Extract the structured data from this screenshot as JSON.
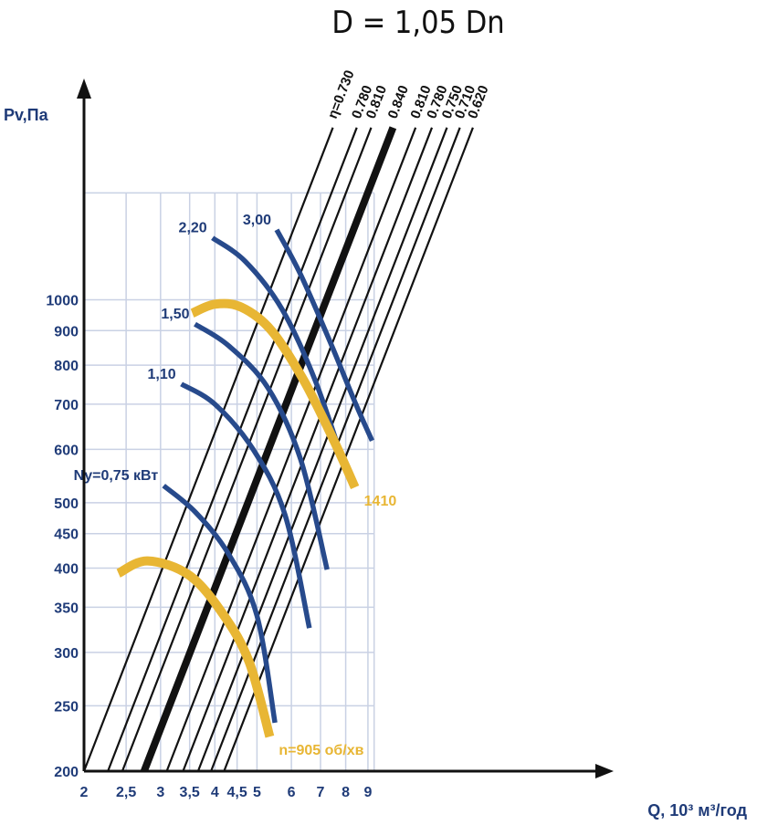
{
  "title": "D = 1,05 Dn",
  "chart_data": {
    "type": "line",
    "xlabel": "Q, 10³ м³/год",
    "ylabel": "Pv,Па",
    "xscale": "log",
    "yscale": "log",
    "xlim": [
      2,
      9.5
    ],
    "ylim": [
      200,
      1500
    ],
    "grid": true,
    "x_ticks": [
      {
        "v": 2,
        "label": "2"
      },
      {
        "v": 2.5,
        "label": "2,5"
      },
      {
        "v": 3,
        "label": "3"
      },
      {
        "v": 3.5,
        "label": "3,5"
      },
      {
        "v": 4,
        "label": "4"
      },
      {
        "v": 4.5,
        "label": "4,5"
      },
      {
        "v": 5,
        "label": "5"
      },
      {
        "v": 6,
        "label": "6"
      },
      {
        "v": 7,
        "label": "7"
      },
      {
        "v": 8,
        "label": "8"
      },
      {
        "v": 9,
        "label": "9"
      }
    ],
    "y_ticks": [
      {
        "v": 200,
        "label": "200"
      },
      {
        "v": 250,
        "label": "250"
      },
      {
        "v": 300,
        "label": "300"
      },
      {
        "v": 350,
        "label": "350"
      },
      {
        "v": 400,
        "label": "400"
      },
      {
        "v": 450,
        "label": "450"
      },
      {
        "v": 500,
        "label": "500"
      },
      {
        "v": 600,
        "label": "600"
      },
      {
        "v": 700,
        "label": "700"
      },
      {
        "v": 800,
        "label": "800"
      },
      {
        "v": 900,
        "label": "900"
      },
      {
        "v": 1000,
        "label": "1000"
      }
    ],
    "efficiency_lines": [
      {
        "label": "η=0.730",
        "x_at_200": 2.0
      },
      {
        "label": "0.780",
        "x_at_200": 2.27
      },
      {
        "label": "0.810",
        "x_at_200": 2.45
      },
      {
        "label": "0.840",
        "x_at_200": 2.75,
        "bold": true
      },
      {
        "label": "0.810",
        "x_at_200": 3.1
      },
      {
        "label": "0.780",
        "x_at_200": 3.38
      },
      {
        "label": "0.750",
        "x_at_200": 3.66
      },
      {
        "label": "0.710",
        "x_at_200": 3.92
      },
      {
        "label": "0.620",
        "x_at_200": 4.2
      }
    ],
    "power_curves": [
      {
        "label": "Ny=0,75 кВт",
        "points": [
          [
            3.05,
            530
          ],
          [
            3.6,
            485
          ],
          [
            4.3,
            420
          ],
          [
            5.0,
            340
          ],
          [
            5.5,
            236
          ]
        ]
      },
      {
        "label": "1,10",
        "points": [
          [
            3.35,
            750
          ],
          [
            4.0,
            700
          ],
          [
            4.9,
            600
          ],
          [
            5.8,
            480
          ],
          [
            6.6,
            326
          ]
        ]
      },
      {
        "label": "1,50",
        "points": [
          [
            3.6,
            920
          ],
          [
            4.3,
            855
          ],
          [
            5.3,
            740
          ],
          [
            6.3,
            580
          ],
          [
            7.25,
            398
          ]
        ]
      },
      {
        "label": "2,20",
        "points": [
          [
            3.95,
            1235
          ],
          [
            4.7,
            1140
          ],
          [
            5.7,
            970
          ],
          [
            6.8,
            760
          ],
          [
            8.0,
            560
          ]
        ]
      },
      {
        "label": "3,00",
        "points": [
          [
            5.55,
            1270
          ],
          [
            6.3,
            1090
          ],
          [
            7.4,
            860
          ],
          [
            8.4,
            705
          ],
          [
            9.2,
            618
          ]
        ]
      }
    ],
    "speed_curves": [
      {
        "label": "n=905 об/хв",
        "points": [
          [
            2.4,
            393
          ],
          [
            2.8,
            410
          ],
          [
            3.5,
            390
          ],
          [
            4.2,
            340
          ],
          [
            4.8,
            290
          ],
          [
            5.35,
            225
          ]
        ]
      },
      {
        "label": "1410",
        "points": [
          [
            3.55,
            955
          ],
          [
            4.0,
            985
          ],
          [
            4.6,
            975
          ],
          [
            5.4,
            900
          ],
          [
            6.4,
            760
          ],
          [
            7.5,
            620
          ],
          [
            8.4,
            527
          ]
        ]
      }
    ]
  }
}
